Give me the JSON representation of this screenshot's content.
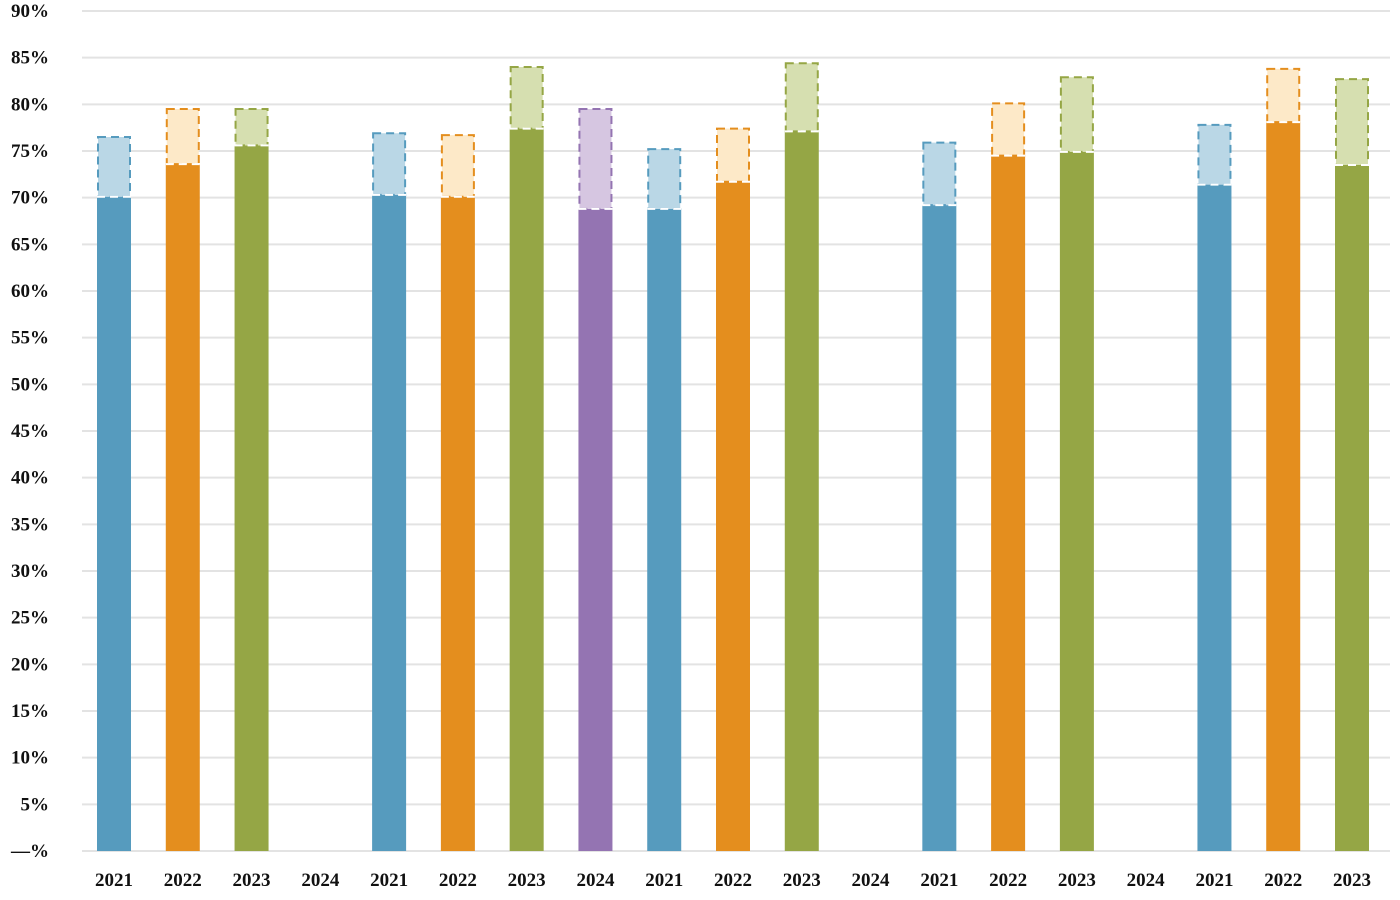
{
  "chart_data": {
    "type": "bar",
    "title": "",
    "xlabel": "",
    "ylabel": "",
    "ylim": [
      0,
      90
    ],
    "y_ticks": [
      "—%",
      "5%",
      "10%",
      "15%",
      "20%",
      "25%",
      "30%",
      "35%",
      "40%",
      "45%",
      "50%",
      "55%",
      "60%",
      "65%",
      "70%",
      "75%",
      "80%",
      "85%",
      "90%"
    ],
    "grid": true,
    "categories": [
      "2021",
      "2022",
      "2023",
      "2024",
      "2021",
      "2022",
      "2023",
      "2024",
      "2021",
      "2022",
      "2023",
      "2024",
      "2021",
      "2022",
      "2023",
      "2024",
      "2021",
      "2022",
      "2023"
    ],
    "series": [
      {
        "name": "solid",
        "values": [
          70.1,
          73.6,
          75.6,
          null,
          70.3,
          70.1,
          77.4,
          68.8,
          68.8,
          71.7,
          77.1,
          null,
          69.2,
          74.5,
          74.9,
          null,
          71.4,
          78.1,
          73.5
        ]
      },
      {
        "name": "dashed-top",
        "values": [
          76.5,
          79.5,
          79.5,
          null,
          76.9,
          76.7,
          84.0,
          79.5,
          75.2,
          77.4,
          84.4,
          null,
          75.9,
          80.1,
          82.9,
          null,
          77.8,
          83.8,
          82.7
        ]
      }
    ],
    "colors": {
      "2021": {
        "solid": "#569bbe",
        "light": "#bad7e6"
      },
      "2022": {
        "solid": "#e48e1e",
        "light": "#fde9c8"
      },
      "2023": {
        "solid": "#95a645",
        "light": "#d6dfb0"
      },
      "2024": {
        "solid": "#9474b2",
        "light": "#d6c6e1"
      }
    },
    "gridline_color": "#e3e3e3"
  }
}
